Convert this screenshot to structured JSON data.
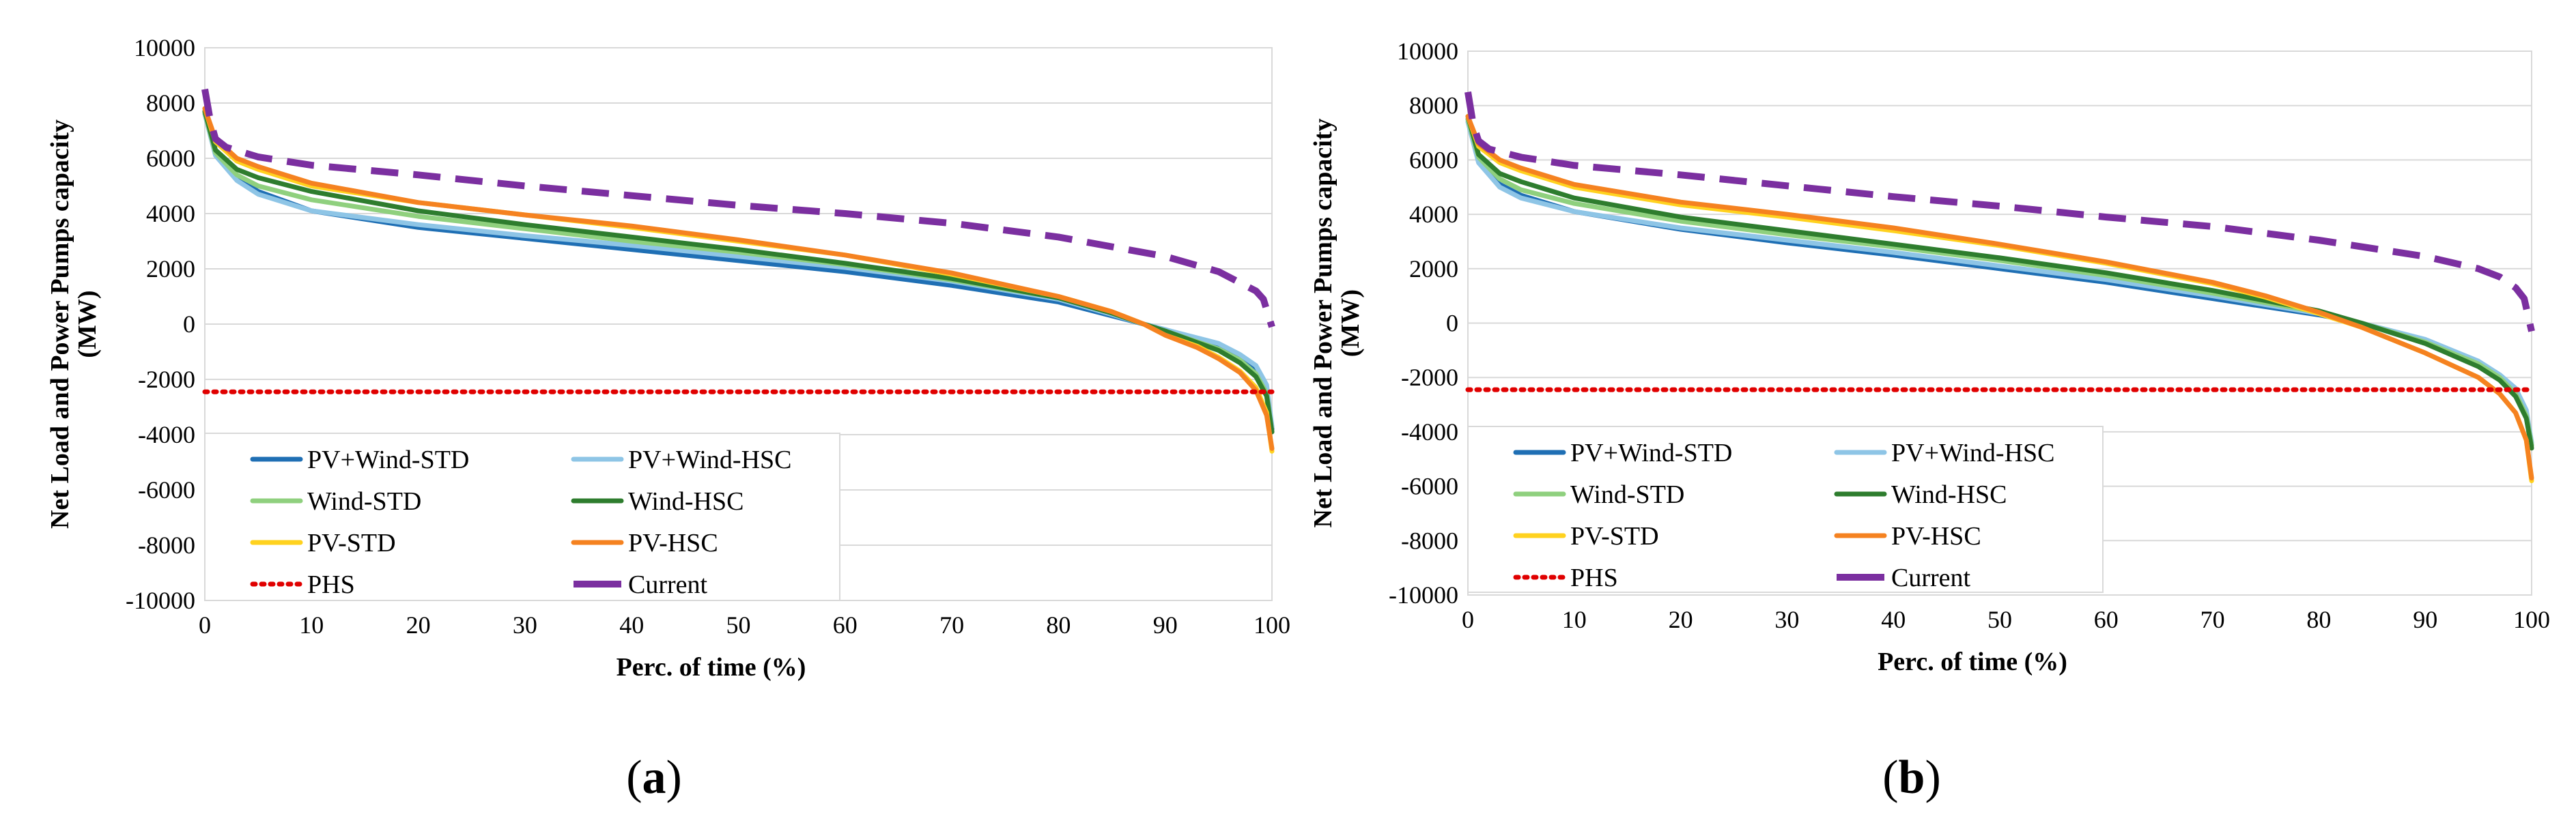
{
  "figure": {
    "panel_labels": [
      {
        "open": "(",
        "letter": "a",
        "close": ")"
      },
      {
        "open": "(",
        "letter": "b",
        "close": ")"
      }
    ]
  },
  "chart_data": [
    {
      "type": "line",
      "panel": "a",
      "title": "",
      "xlabel": "Perc. of time (%)",
      "ylabel": "Net Load and Power Pumps capacity (MW)",
      "ylabel_lines": [
        "Net Load and Power Pumps capacity",
        "(MW)"
      ],
      "xlim": [
        0,
        100
      ],
      "ylim": [
        -10000,
        10000
      ],
      "xticks": [
        0,
        10,
        20,
        30,
        40,
        50,
        60,
        70,
        80,
        90,
        100
      ],
      "yticks": [
        -10000,
        -8000,
        -6000,
        -4000,
        -2000,
        0,
        2000,
        4000,
        6000,
        8000,
        10000
      ],
      "grid": "horizontal",
      "legend_position": "bottom-left",
      "series": [
        {
          "name": "PV+Wind-STD",
          "color": "#1f6fb4",
          "style": "solid",
          "x": [
            0,
            1,
            3,
            5,
            10,
            20,
            30,
            40,
            50,
            60,
            70,
            80,
            85,
            88,
            90,
            95,
            97,
            98.5,
            99.5,
            100
          ],
          "y": [
            7700,
            6300,
            5300,
            4800,
            4100,
            3500,
            3100,
            2700,
            2300,
            1900,
            1400,
            800,
            300,
            0,
            -200,
            -800,
            -1200,
            -1600,
            -2300,
            -3800
          ]
        },
        {
          "name": "PV+Wind-HSC",
          "color": "#8ec5e6",
          "style": "solid",
          "x": [
            0,
            1,
            3,
            5,
            10,
            20,
            30,
            40,
            50,
            60,
            70,
            80,
            85,
            88,
            90,
            95,
            97,
            98.5,
            99.5,
            100
          ],
          "y": [
            7600,
            6100,
            5200,
            4700,
            4100,
            3600,
            3200,
            2850,
            2450,
            2050,
            1550,
            900,
            350,
            0,
            -200,
            -700,
            -1100,
            -1500,
            -2200,
            -3700
          ]
        },
        {
          "name": "Wind-STD",
          "color": "#8fd07e",
          "style": "solid",
          "x": [
            0,
            1,
            3,
            5,
            10,
            20,
            30,
            40,
            50,
            60,
            70,
            80,
            85,
            88,
            90,
            95,
            97,
            98.5,
            99.5,
            100
          ],
          "y": [
            7650,
            6200,
            5400,
            5000,
            4500,
            3900,
            3450,
            3000,
            2600,
            2150,
            1600,
            950,
            400,
            0,
            -250,
            -900,
            -1300,
            -1800,
            -2500,
            -3900
          ]
        },
        {
          "name": "Wind-HSC",
          "color": "#2e7d2e",
          "style": "solid",
          "x": [
            0,
            1,
            3,
            5,
            10,
            20,
            30,
            40,
            50,
            60,
            70,
            80,
            85,
            88,
            90,
            95,
            97,
            98.5,
            99.5,
            100
          ],
          "y": [
            7700,
            6300,
            5600,
            5300,
            4800,
            4100,
            3600,
            3150,
            2700,
            2200,
            1650,
            950,
            400,
            0,
            -250,
            -950,
            -1400,
            -1900,
            -2600,
            -3900
          ]
        },
        {
          "name": "PV-STD",
          "color": "#ffd21f",
          "style": "solid",
          "x": [
            0,
            1,
            3,
            5,
            10,
            20,
            30,
            40,
            50,
            60,
            70,
            80,
            85,
            88,
            90,
            93,
            95,
            97,
            98.5,
            99.5,
            100
          ],
          "y": [
            7800,
            6600,
            5900,
            5600,
            5000,
            4400,
            3950,
            3500,
            3000,
            2500,
            1800,
            1000,
            450,
            0,
            -400,
            -800,
            -1200,
            -1700,
            -2300,
            -3200,
            -4600
          ]
        },
        {
          "name": "PV-HSC",
          "color": "#f58220",
          "style": "solid",
          "x": [
            0,
            1,
            3,
            5,
            10,
            20,
            30,
            40,
            50,
            60,
            70,
            80,
            85,
            88,
            90,
            93,
            95,
            97,
            98.5,
            99.5,
            100
          ],
          "y": [
            7800,
            6700,
            6000,
            5700,
            5100,
            4400,
            3950,
            3550,
            3050,
            2500,
            1850,
            1000,
            450,
            0,
            -400,
            -850,
            -1250,
            -1750,
            -2400,
            -3300,
            -4500
          ]
        },
        {
          "name": "PHS",
          "color": "#e00000",
          "style": "dotted",
          "x": [
            0,
            100
          ],
          "y": [
            -2450,
            -2450
          ]
        },
        {
          "name": "Current",
          "color": "#7b2fa0",
          "style": "dashed",
          "x": [
            0,
            0.5,
            1,
            2,
            5,
            10,
            20,
            30,
            40,
            50,
            60,
            70,
            80,
            90,
            95,
            97,
            98.5,
            99.2,
            100
          ],
          "y": [
            8500,
            7400,
            6700,
            6400,
            6050,
            5750,
            5400,
            5000,
            4650,
            4300,
            4000,
            3650,
            3150,
            2450,
            1900,
            1500,
            1200,
            900,
            -100
          ]
        }
      ]
    },
    {
      "type": "line",
      "panel": "b",
      "title": "",
      "xlabel": "Perc. of time (%)",
      "ylabel": "Net Load and Power Pumps capacity (MW)",
      "ylabel_lines": [
        "Net Load and Power Pumps capacity",
        "(MW)"
      ],
      "xlim": [
        0,
        100
      ],
      "ylim": [
        -10000,
        10000
      ],
      "xticks": [
        0,
        10,
        20,
        30,
        40,
        50,
        60,
        70,
        80,
        90,
        100
      ],
      "yticks": [
        -10000,
        -8000,
        -6000,
        -4000,
        -2000,
        0,
        2000,
        4000,
        6000,
        8000,
        10000
      ],
      "grid": "horizontal",
      "legend_position": "bottom-left",
      "series": [
        {
          "name": "PV+Wind-STD",
          "color": "#1f6fb4",
          "style": "solid",
          "x": [
            0,
            1,
            3,
            5,
            10,
            20,
            30,
            40,
            50,
            60,
            70,
            80,
            84,
            90,
            95,
            97,
            98.5,
            99.5,
            100
          ],
          "y": [
            7500,
            6000,
            5100,
            4700,
            4100,
            3450,
            2950,
            2500,
            2000,
            1500,
            900,
            300,
            0,
            -700,
            -1500,
            -2000,
            -2500,
            -3300,
            -4500
          ]
        },
        {
          "name": "PV+Wind-HSC",
          "color": "#8ec5e6",
          "style": "solid",
          "x": [
            0,
            1,
            3,
            5,
            10,
            20,
            30,
            40,
            50,
            60,
            70,
            80,
            84,
            90,
            95,
            97,
            98.5,
            99.5,
            100
          ],
          "y": [
            7400,
            5900,
            5000,
            4600,
            4100,
            3500,
            3050,
            2600,
            2100,
            1600,
            1000,
            350,
            0,
            -600,
            -1400,
            -1900,
            -2400,
            -3200,
            -4400
          ]
        },
        {
          "name": "Wind-STD",
          "color": "#8fd07e",
          "style": "solid",
          "x": [
            0,
            1,
            3,
            5,
            10,
            20,
            30,
            40,
            50,
            60,
            70,
            80,
            84,
            90,
            95,
            97,
            98.5,
            99.5,
            100
          ],
          "y": [
            7500,
            6100,
            5300,
            4900,
            4400,
            3750,
            3250,
            2800,
            2300,
            1750,
            1100,
            400,
            0,
            -700,
            -1500,
            -2000,
            -2600,
            -3400,
            -4500
          ]
        },
        {
          "name": "Wind-HSC",
          "color": "#2e7d2e",
          "style": "solid",
          "x": [
            0,
            1,
            3,
            5,
            10,
            20,
            30,
            40,
            50,
            60,
            70,
            80,
            84,
            90,
            95,
            97,
            98.5,
            99.5,
            100
          ],
          "y": [
            7600,
            6200,
            5500,
            5200,
            4600,
            3900,
            3400,
            2900,
            2400,
            1850,
            1200,
            450,
            0,
            -750,
            -1600,
            -2100,
            -2700,
            -3500,
            -4600
          ]
        },
        {
          "name": "PV-STD",
          "color": "#ffd21f",
          "style": "solid",
          "x": [
            0,
            1,
            3,
            5,
            10,
            20,
            30,
            40,
            50,
            60,
            70,
            75,
            80,
            84,
            90,
            95,
            97,
            98.5,
            99.5,
            100
          ],
          "y": [
            7600,
            6500,
            5900,
            5600,
            5000,
            4350,
            3900,
            3400,
            2850,
            2200,
            1450,
            950,
            350,
            -150,
            -1100,
            -2000,
            -2600,
            -3300,
            -4300,
            -5800
          ]
        },
        {
          "name": "PV-HSC",
          "color": "#f58220",
          "style": "solid",
          "x": [
            0,
            1,
            3,
            5,
            10,
            20,
            30,
            40,
            50,
            60,
            70,
            75,
            80,
            84,
            90,
            95,
            97,
            98.5,
            99.5,
            100
          ],
          "y": [
            7600,
            6600,
            6000,
            5700,
            5100,
            4450,
            4000,
            3500,
            2900,
            2250,
            1500,
            1000,
            400,
            -150,
            -1100,
            -2000,
            -2600,
            -3300,
            -4300,
            -5700
          ]
        },
        {
          "name": "PHS",
          "color": "#e00000",
          "style": "dotted",
          "x": [
            0,
            100
          ],
          "y": [
            -2450,
            -2450
          ]
        },
        {
          "name": "Current",
          "color": "#7b2fa0",
          "style": "dashed",
          "x": [
            0,
            0.5,
            1,
            2,
            5,
            10,
            20,
            30,
            40,
            50,
            60,
            70,
            80,
            90,
            95,
            97,
            98.5,
            99.3,
            100
          ],
          "y": [
            8500,
            7300,
            6700,
            6400,
            6100,
            5800,
            5450,
            5050,
            4650,
            4300,
            3900,
            3550,
            3050,
            2450,
            2000,
            1700,
            1300,
            900,
            -300
          ]
        }
      ]
    }
  ]
}
